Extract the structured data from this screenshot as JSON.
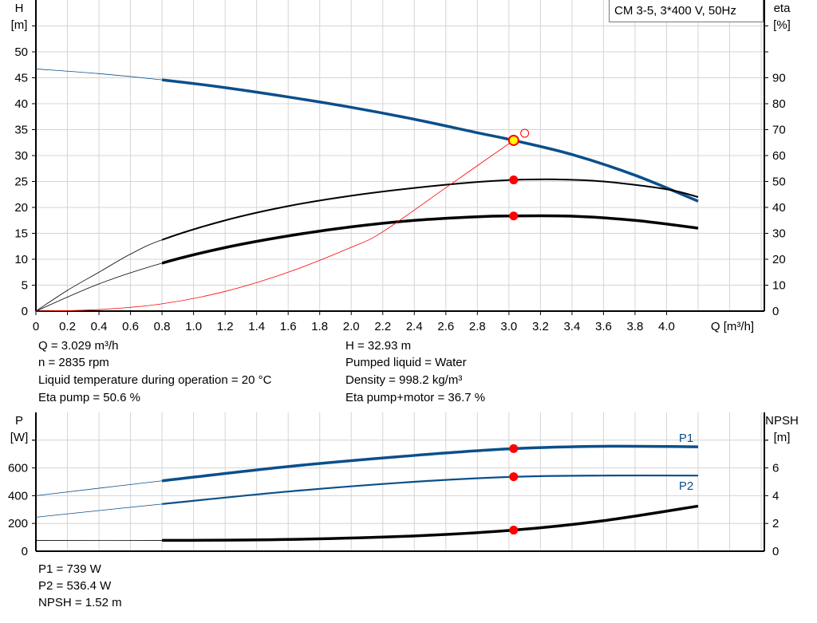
{
  "legend_label": "CM 3-5, 3*400 V, 50Hz",
  "info_top": {
    "q": "Q = 3.029 m³/h",
    "n": "n = 2835 rpm",
    "temp": "Liquid temperature during operation = 20 °C",
    "eta_pump": "Eta pump = 50.6 %",
    "h": "H = 32.93 m",
    "liquid": "Pumped liquid = Water",
    "density": "Density = 998.2 kg/m³",
    "eta_total": "Eta pump+motor = 36.7 %"
  },
  "info_bottom": {
    "p1": "P1 = 739 W",
    "p2": "P2 = 536.4 W",
    "npsh": "NPSH = 1.52 m"
  },
  "colors": {
    "blue": "#0b4f8a",
    "black": "#000000",
    "red": "#ff0000",
    "duty_fill": "#ffff00",
    "grid": "#d4d4d4"
  },
  "chart_data": [
    {
      "type": "line",
      "xlabel": "Q [m³/h]",
      "ylabel": [
        "H",
        "[m]"
      ],
      "y2label": [
        "eta",
        "[%]"
      ],
      "xlim": [
        0,
        4.62
      ],
      "ylim": [
        0,
        60
      ],
      "y2lim": [
        0,
        120
      ],
      "grid": true,
      "xticks": [
        "0",
        "0.2",
        "0.4",
        "0.6",
        "0.8",
        "1.0",
        "1.2",
        "1.4",
        "1.6",
        "1.8",
        "2.0",
        "2.2",
        "2.4",
        "2.6",
        "2.8",
        "3.0",
        "3.2",
        "3.4",
        "3.6",
        "3.8",
        "4.0"
      ],
      "yticks": [
        0,
        5,
        10,
        15,
        20,
        25,
        30,
        35,
        40,
        45,
        50
      ],
      "y2ticks": [
        0,
        10,
        20,
        30,
        40,
        50,
        60,
        70,
        80,
        90
      ],
      "series": [
        {
          "id": "H",
          "axis": "y",
          "color": "#0b4f8a",
          "points": [
            [
              0,
              46.7
            ],
            [
              0.4,
              45.8
            ],
            [
              0.8,
              44.6
            ],
            [
              1.2,
              43.1
            ],
            [
              1.6,
              41.3
            ],
            [
              2.0,
              39.3
            ],
            [
              2.4,
              37.0
            ],
            [
              2.8,
              34.4
            ],
            [
              3.03,
              32.93
            ],
            [
              3.4,
              30.2
            ],
            [
              3.8,
              26.2
            ],
            [
              4.2,
              21.2
            ]
          ]
        },
        {
          "id": "eta_pump",
          "axis": "y2",
          "color": "#000000",
          "points": [
            [
              0,
              0
            ],
            [
              0.2,
              8
            ],
            [
              0.4,
              15
            ],
            [
              0.6,
              22
            ],
            [
              0.8,
              27.5
            ],
            [
              1.2,
              35
            ],
            [
              1.6,
              40.5
            ],
            [
              2.0,
              44.5
            ],
            [
              2.4,
              47.5
            ],
            [
              2.8,
              49.8
            ],
            [
              3.03,
              50.6
            ],
            [
              3.3,
              50.8
            ],
            [
              3.6,
              50
            ],
            [
              4.0,
              47
            ],
            [
              4.2,
              44
            ]
          ]
        },
        {
          "id": "eta_total",
          "axis": "y2",
          "color": "#000000",
          "points": [
            [
              0,
              0
            ],
            [
              0.4,
              10.5
            ],
            [
              0.8,
              18.5
            ],
            [
              1.2,
              24.5
            ],
            [
              1.6,
              29
            ],
            [
              2.0,
              32.5
            ],
            [
              2.4,
              35
            ],
            [
              2.8,
              36.4
            ],
            [
              3.03,
              36.7
            ],
            [
              3.4,
              36.6
            ],
            [
              3.8,
              35
            ],
            [
              4.2,
              32
            ]
          ]
        },
        {
          "id": "system",
          "axis": "y",
          "color": "#ff0000",
          "points": [
            [
              0,
              0
            ],
            [
              0.4,
              0.3
            ],
            [
              0.8,
              1.4
            ],
            [
              1.2,
              3.8
            ],
            [
              1.6,
              7.5
            ],
            [
              2.0,
              12.3
            ],
            [
              2.2,
              15.3
            ],
            [
              2.6,
              23.8
            ],
            [
              3.03,
              32.93
            ]
          ]
        }
      ],
      "duty_point": {
        "q": 3.03,
        "h": 32.93,
        "eta_pump": 50.6,
        "eta_total": 36.7
      },
      "marker_open": {
        "q": 3.1,
        "h": 34.3
      }
    },
    {
      "type": "line",
      "ylabel": [
        "P",
        "[W]"
      ],
      "y2label": [
        "NPSH",
        "[m]"
      ],
      "xlim": [
        0,
        4.62
      ],
      "ylim": [
        0,
        1000
      ],
      "y2lim": [
        0,
        10
      ],
      "grid": true,
      "yticks": [
        0,
        200,
        400,
        600
      ],
      "y2ticks": [
        0,
        2,
        4,
        6
      ],
      "series": [
        {
          "id": "P1",
          "name": "P1",
          "axis": "y",
          "color": "#0b4f8a",
          "points": [
            [
              0,
              400
            ],
            [
              0.8,
              507
            ],
            [
              1.6,
              610
            ],
            [
              2.4,
              690
            ],
            [
              3.03,
              739
            ],
            [
              3.6,
              756
            ],
            [
              4.2,
              752
            ]
          ]
        },
        {
          "id": "P2",
          "name": "P2",
          "axis": "y",
          "color": "#0b4f8a",
          "points": [
            [
              0,
              245
            ],
            [
              0.8,
              340
            ],
            [
              1.6,
              430
            ],
            [
              2.4,
              500
            ],
            [
              3.03,
              536
            ],
            [
              3.6,
              545
            ],
            [
              4.2,
              545
            ]
          ]
        },
        {
          "id": "NPSH",
          "axis": "y2",
          "color": "#000000",
          "points": [
            [
              0,
              0.78
            ],
            [
              0.8,
              0.78
            ],
            [
              1.6,
              0.85
            ],
            [
              2.4,
              1.1
            ],
            [
              3.03,
              1.52
            ],
            [
              3.6,
              2.2
            ],
            [
              4.2,
              3.25
            ]
          ]
        }
      ],
      "duty_point": {
        "q": 3.03,
        "p1": 739,
        "p2": 536.4,
        "npsh": 1.52
      }
    }
  ]
}
